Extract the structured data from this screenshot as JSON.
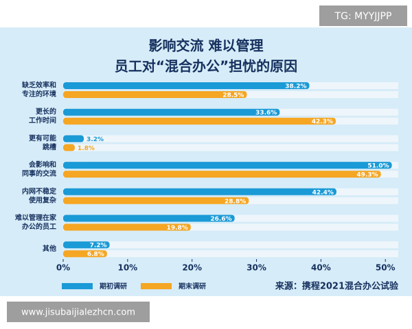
{
  "watermark_top": "TG: MYYJJPP",
  "watermark_bottom": "www.jisubaijialezhcn.com",
  "chart_data": {
    "type": "hbar",
    "title": [
      "影响交流 难以管理",
      "员工对“混合办公”担忧的原因"
    ],
    "source": "来源：携程2021混合办公试验",
    "categories": [
      [
        "缺乏效率和",
        "专注的环境"
      ],
      [
        "更长的",
        "工作时间"
      ],
      [
        "更有可能",
        "跳槽"
      ],
      [
        "会影响和",
        "同事的交流"
      ],
      [
        "内网不稳定",
        "使用复杂"
      ],
      [
        "难以管理在家",
        "办公的员工"
      ],
      [
        "其他"
      ]
    ],
    "series": [
      {
        "name": "期初调研",
        "color": "#1a9ad6",
        "values": [
          38.2,
          33.6,
          3.2,
          51.0,
          42.4,
          26.6,
          7.2
        ],
        "value_labels": [
          "38.2%",
          "33.6%",
          "3.2%",
          "51.0%",
          "42.4%",
          "26.6%",
          "7.2%"
        ]
      },
      {
        "name": "期末调研",
        "color": "#f5a623",
        "values": [
          28.5,
          42.3,
          1.8,
          49.3,
          28.8,
          19.8,
          6.8
        ],
        "value_labels": [
          "28.5%",
          "42.3%",
          "1.8%",
          "49.3%",
          "28.8%",
          "19.8%",
          "6.8%"
        ]
      }
    ],
    "xlim": [
      0,
      52
    ],
    "xticks": [
      {
        "value": 0,
        "label": "0%"
      },
      {
        "value": 10,
        "label": "10%"
      },
      {
        "value": 20,
        "label": "20%"
      },
      {
        "value": 30,
        "label": "30%"
      },
      {
        "value": 40,
        "label": "40%"
      },
      {
        "value": 50,
        "label": "50%"
      }
    ]
  }
}
